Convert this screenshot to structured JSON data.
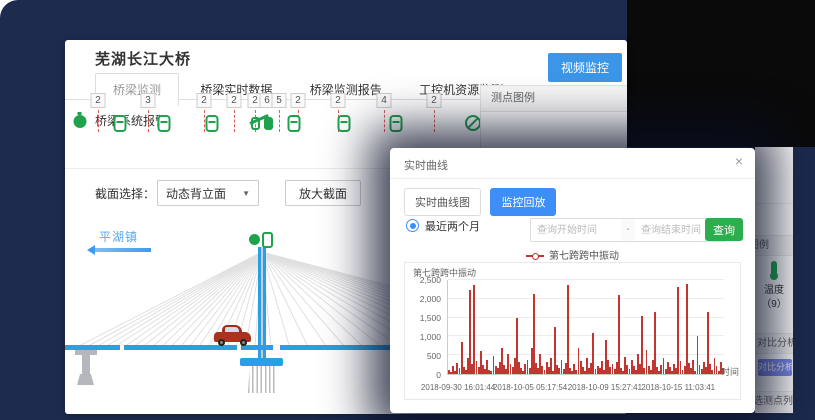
{
  "app": {
    "title": "芜湖长江大桥",
    "tabs": [
      {
        "label": "桥梁监测",
        "active": true
      },
      {
        "label": "桥梁实时数据",
        "active": false
      },
      {
        "label": "桥梁监测报告",
        "active": false
      },
      {
        "label": "工控机资源监测",
        "active": false
      },
      {
        "label": "桥梁系统报警",
        "active": false
      }
    ],
    "video_button": "视频监控"
  },
  "section": {
    "label": "截面选择：",
    "select_value": "动态背立面",
    "caret": "▼",
    "zoom_button": "放大截面"
  },
  "legend_panel": {
    "title": "测点图例"
  },
  "bridge": {
    "direction_label": "平湖镇"
  },
  "sensors": {
    "items": [
      {
        "x": 15,
        "icon": "gauge"
      },
      {
        "x": 33,
        "badge": "2"
      },
      {
        "x": 55,
        "icon": "link"
      },
      {
        "x": 83,
        "badge": "3"
      },
      {
        "x": 99,
        "icon": "link"
      },
      {
        "x": 139,
        "badge": "2"
      },
      {
        "x": 147,
        "icon": "link"
      },
      {
        "x": 169,
        "badge": "2"
      },
      {
        "x": 190,
        "badge": "2"
      },
      {
        "x": 202,
        "badge": "6",
        "noline": true
      },
      {
        "x": 214,
        "badge": "5"
      },
      {
        "x": 196,
        "icon": "bearing"
      },
      {
        "x": 233,
        "badge": "2"
      },
      {
        "x": 229,
        "icon": "link"
      },
      {
        "x": 273,
        "badge": "2"
      },
      {
        "x": 279,
        "icon": "link"
      },
      {
        "x": 319,
        "badge": "4"
      },
      {
        "x": 331,
        "icon": "link"
      },
      {
        "x": 369,
        "badge": "2"
      },
      {
        "x": 408,
        "icon": "ban"
      }
    ]
  },
  "side_panel": {
    "legend_title": "测点图例",
    "temp_label": "温度",
    "temp_count": "（9）",
    "compare_title": "对比分析",
    "compare_button": "对比分析",
    "points_title": "已选测点列表"
  },
  "modal": {
    "title": "实时曲线",
    "close": "×",
    "tabs": [
      {
        "label": "实时曲线图",
        "active": false
      },
      {
        "label": "监控回放",
        "active": true
      }
    ],
    "radio_label": "最近两个月",
    "start_placeholder": "查询开始时间",
    "separator": "-",
    "end_placeholder": "查询结束时间",
    "query_button": "查询"
  },
  "chart_data": {
    "type": "line",
    "title": "第七跨跨中振动",
    "legend": [
      "第七跨跨中振动"
    ],
    "ylabel": "第七跨跨中振动",
    "xlabel": "时间",
    "ylim": [
      0,
      2500
    ],
    "y_ticks": [
      0,
      500,
      1000,
      1500,
      2000,
      2500
    ],
    "x_ticks": [
      "2018-09-30 16:01:44",
      "2018-10-05 05:17:54",
      "2018-10-09 15:27:41",
      "2018-10-15 11:03:41"
    ],
    "x_tick_pos": [
      4,
      30,
      57,
      83.5
    ],
    "grid": true,
    "legend_position": "top",
    "series_color": "#c23531",
    "values": [
      120,
      60,
      210,
      90,
      300,
      150,
      860,
      180,
      120,
      420,
      2230,
      260,
      2360,
      340,
      180,
      600,
      240,
      140,
      380,
      120,
      90,
      480,
      200,
      160,
      320,
      700,
      240,
      130,
      540,
      260,
      180,
      420,
      1500,
      320,
      160,
      90,
      260,
      380,
      150,
      700,
      2120,
      280,
      150,
      520,
      220,
      120,
      330,
      180,
      430,
      80,
      1260,
      240,
      160,
      380,
      130,
      290,
      2380,
      170,
      90,
      260,
      110,
      700,
      350,
      190,
      90,
      420,
      160,
      280,
      1100,
      140,
      200,
      160,
      340,
      120,
      900,
      380,
      180,
      260,
      140,
      310,
      2100,
      170,
      90,
      440,
      230,
      130,
      380,
      200,
      100,
      520,
      270,
      1550,
      150,
      640,
      220,
      120,
      360,
      1650,
      180,
      90,
      240,
      420,
      130,
      310,
      180,
      90,
      260,
      150,
      2320,
      340,
      120,
      200,
      2400,
      280,
      160,
      380,
      90,
      1000,
      230,
      140,
      320,
      180,
      1650,
      260,
      110,
      420,
      200,
      90,
      310,
      150
    ]
  }
}
